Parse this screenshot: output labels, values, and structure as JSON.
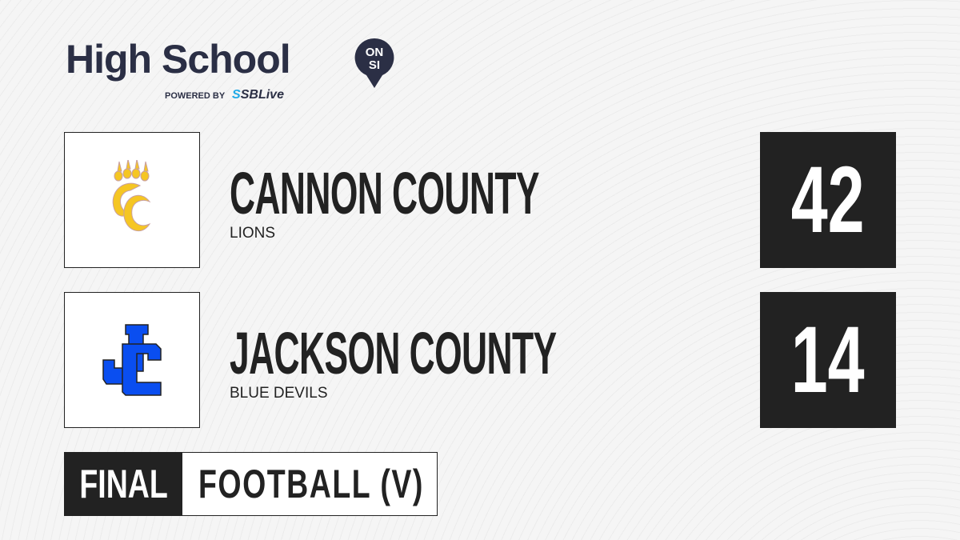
{
  "brand": {
    "title": "High School",
    "badge_top": "ON",
    "badge_bottom": "SI",
    "powered_by": "POWERED BY",
    "partner_prefix": "S",
    "partner": "SBLive"
  },
  "teams": [
    {
      "name": "CANNON COUNTY",
      "mascot": "LIONS",
      "score": "42",
      "logo_color": "#f5c623"
    },
    {
      "name": "JACKSON COUNTY",
      "mascot": "BLUE DEVILS",
      "score": "14",
      "logo_color": "#0a4ef0"
    }
  ],
  "status": {
    "final": "FINAL",
    "sport": "FOOTBALL (V)"
  },
  "colors": {
    "dark": "#222222",
    "brand_navy": "#2b2f45",
    "partner_blue": "#1fa9e6"
  }
}
